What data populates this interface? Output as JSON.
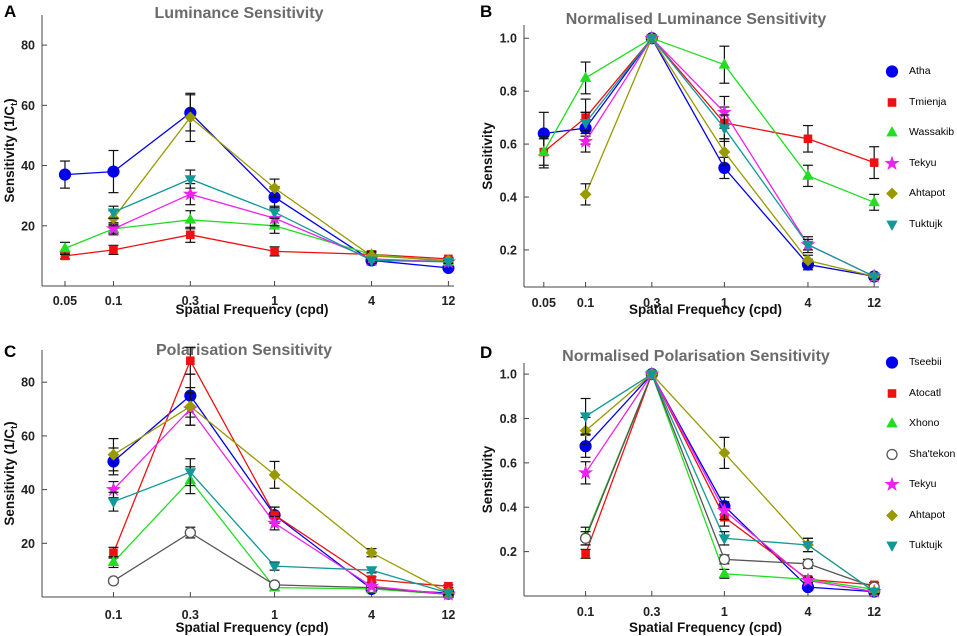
{
  "figure": {
    "panels": [
      {
        "letter": "A",
        "title": "Luminance Sensitivity"
      },
      {
        "letter": "B",
        "title": "Normalised Luminance Sensitivity"
      },
      {
        "letter": "C",
        "title": "Polarisation Sensitivity"
      },
      {
        "letter": "D",
        "title": "Normalised Polarisation Sensitivity"
      }
    ]
  },
  "chart_data": [
    {
      "type": "line",
      "title": "Luminance Sensitivity",
      "xlabel": "Spatial Frequency (cpd)",
      "ylabel": "Sensitivity (1/C",
      "ylabel_sub": "t",
      "ylabel_end": ")",
      "xscale": "log",
      "xlim": [
        0.036,
        13
      ],
      "ylim": [
        0,
        90
      ],
      "xticks": [
        0.05,
        0.1,
        0.3,
        1,
        4,
        12
      ],
      "xticklabels": [
        "0.05",
        "0.1",
        "0.3",
        "1",
        "4",
        "12"
      ],
      "yticks": [
        20,
        40,
        60,
        80
      ],
      "yticklabels": [
        "20",
        "40",
        "60",
        "80"
      ],
      "legend": "none",
      "series": [
        {
          "name": "Atha",
          "color": "#0000ee",
          "marker": "circle",
          "x": [
            0.05,
            0.1,
            0.3,
            1,
            4,
            12
          ],
          "y": [
            37,
            38,
            57.5,
            29.5,
            8.5,
            6
          ],
          "err": [
            4.5,
            7,
            6,
            3.5,
            1.5,
            0.5
          ]
        },
        {
          "name": "Tmienja",
          "color": "#ee1111",
          "marker": "square",
          "x": [
            0.05,
            0.1,
            0.3,
            1,
            4,
            12
          ],
          "y": [
            10,
            12,
            17,
            11.5,
            10.5,
            9
          ],
          "err": [
            1,
            1.5,
            2.5,
            1.5,
            1,
            0.5
          ]
        },
        {
          "name": "Wassakib",
          "color": "#22dd22",
          "marker": "triangle",
          "x": [
            0.05,
            0.1,
            0.3,
            1,
            4,
            12
          ],
          "y": [
            12.5,
            19,
            22,
            20,
            10.5,
            8
          ],
          "err": [
            2,
            1.5,
            3,
            2.5,
            1,
            0.5
          ]
        },
        {
          "name": "Tekyu",
          "color": "#ee22ee",
          "marker": "star",
          "x": [
            0.1,
            0.3,
            1,
            4,
            12
          ],
          "y": [
            19,
            30.5,
            22.5,
            9,
            8
          ],
          "err": [
            2,
            3.5,
            2.5,
            1,
            0.5
          ]
        },
        {
          "name": "Ahtapot",
          "color": "#999900",
          "marker": "diamond",
          "x": [
            0.1,
            0.3,
            1,
            4,
            12
          ],
          "y": [
            22.5,
            56,
            32.5,
            10,
            8.5
          ],
          "err": [
            2.5,
            8,
            3,
            1,
            0.5
          ]
        },
        {
          "name": "Tuktujk",
          "color": "#119999",
          "marker": "tridown",
          "x": [
            0.1,
            0.3,
            1,
            4,
            12
          ],
          "y": [
            24.5,
            35.5,
            24.5,
            8.5,
            8
          ],
          "err": [
            2,
            3,
            2,
            1,
            0.5
          ]
        }
      ]
    },
    {
      "type": "line",
      "title": "Normalised Luminance Sensitivity",
      "xlabel": "Spatial Frequency (cpd)",
      "ylabel": "Sensitivity",
      "xscale": "log",
      "xlim": [
        0.036,
        13
      ],
      "ylim": [
        0.06,
        1.05
      ],
      "xticks": [
        0.05,
        0.1,
        0.3,
        1,
        4,
        12
      ],
      "xticklabels": [
        "0.05",
        "0.1",
        "0.3",
        "1",
        "4",
        "12"
      ],
      "yticks": [
        0.2,
        0.4,
        0.6,
        0.8,
        1.0
      ],
      "yticklabels": [
        "0.2",
        "0.4",
        "0.6",
        "0.8",
        "1.0"
      ],
      "legend": "right",
      "series": [
        {
          "name": "Atha",
          "color": "#0000ee",
          "marker": "circle",
          "x": [
            0.05,
            0.1,
            0.3,
            1,
            4,
            12
          ],
          "y": [
            0.64,
            0.66,
            1.0,
            0.51,
            0.145,
            0.1
          ],
          "err": [
            0.08,
            0.06,
            0,
            0.04,
            0.02,
            0.01
          ]
        },
        {
          "name": "Tmienja",
          "color": "#ee1111",
          "marker": "square",
          "x": [
            0.05,
            0.1,
            0.3,
            1,
            4,
            12
          ],
          "y": [
            0.57,
            0.7,
            1.0,
            0.68,
            0.62,
            0.53
          ],
          "err": [
            0.05,
            0.07,
            0,
            0.06,
            0.05,
            0.06
          ]
        },
        {
          "name": "Wassakib",
          "color": "#22dd22",
          "marker": "triangle",
          "x": [
            0.05,
            0.1,
            0.3,
            1,
            4,
            12
          ],
          "y": [
            0.57,
            0.85,
            1.0,
            0.9,
            0.48,
            0.38
          ],
          "err": [
            0.06,
            0.06,
            0,
            0.07,
            0.04,
            0.03
          ]
        },
        {
          "name": "Tekyu",
          "color": "#ee22ee",
          "marker": "star",
          "x": [
            0.1,
            0.3,
            1,
            4,
            12
          ],
          "y": [
            0.61,
            1.0,
            0.72,
            0.22,
            0.1
          ],
          "err": [
            0.04,
            0,
            0.06,
            0.03,
            0.01
          ]
        },
        {
          "name": "Ahtapot",
          "color": "#999900",
          "marker": "diamond",
          "x": [
            0.1,
            0.3,
            1,
            4,
            12
          ],
          "y": [
            0.41,
            1.0,
            0.57,
            0.16,
            0.1
          ],
          "err": [
            0.04,
            0,
            0.05,
            0.02,
            0.01
          ]
        },
        {
          "name": "Tuktujk",
          "color": "#119999",
          "marker": "tridown",
          "x": [
            0.1,
            0.3,
            1,
            4,
            12
          ],
          "y": [
            0.68,
            1.0,
            0.66,
            0.22,
            0.1
          ],
          "err": [
            0.04,
            0,
            0.05,
            0.02,
            0.01
          ]
        }
      ]
    },
    {
      "type": "line",
      "title": "Polarisation Sensitivity",
      "xlabel": "Spatial Frequency (cpd)",
      "ylabel": "Sensitivity (1/C",
      "ylabel_sub": "t",
      "ylabel_end": ")",
      "xscale": "log",
      "xlim": [
        0.036,
        13
      ],
      "ylim": [
        0,
        92
      ],
      "xticks": [
        0.1,
        0.3,
        1,
        4,
        12
      ],
      "xticklabels": [
        "0.1",
        "0.3",
        "1",
        "4",
        "12"
      ],
      "yticks": [
        20,
        40,
        60,
        80
      ],
      "yticklabels": [
        "20",
        "40",
        "60",
        "80"
      ],
      "legend": "none",
      "series": [
        {
          "name": "Tseebii",
          "color": "#0000ee",
          "marker": "circle",
          "x": [
            0.1,
            0.3,
            1,
            4,
            12
          ],
          "y": [
            50.5,
            75,
            30.5,
            3,
            1.5
          ],
          "err": [
            5,
            8,
            3,
            1,
            0.5
          ]
        },
        {
          "name": "Atocatl",
          "color": "#ee1111",
          "marker": "square",
          "x": [
            0.1,
            0.3,
            1,
            4,
            12
          ],
          "y": [
            16.5,
            88,
            30.5,
            6.5,
            4
          ],
          "err": [
            2,
            5,
            3,
            1,
            0.5
          ]
        },
        {
          "name": "Xhono",
          "color": "#22dd22",
          "marker": "triangle",
          "x": [
            0.1,
            0.3,
            1,
            4,
            12
          ],
          "y": [
            13,
            43.5,
            3.5,
            3,
            1
          ],
          "err": [
            2,
            5,
            1,
            0.5,
            0.5
          ]
        },
        {
          "name": "Sha'tekon",
          "color": "#555555",
          "marker": "opencircle",
          "x": [
            0.1,
            0.3,
            1,
            4,
            12
          ],
          "y": [
            6,
            24,
            4.5,
            3.5,
            1
          ],
          "err": [
            1,
            2,
            1,
            0.5,
            0.5
          ]
        },
        {
          "name": "Tekyu",
          "color": "#ee22ee",
          "marker": "star",
          "x": [
            0.1,
            0.3,
            1,
            4,
            12
          ],
          "y": [
            40,
            70,
            27.5,
            4,
            1
          ],
          "err": [
            3,
            6,
            2.5,
            0.5,
            0.5
          ]
        },
        {
          "name": "Ahtapot",
          "color": "#999900",
          "marker": "diamond",
          "x": [
            0.1,
            0.3,
            1,
            4,
            12
          ],
          "y": [
            53,
            71,
            45.5,
            16.5,
            1.5
          ],
          "err": [
            6,
            7,
            5,
            1.5,
            0.5
          ]
        },
        {
          "name": "Tuktujk",
          "color": "#119999",
          "marker": "tridown",
          "x": [
            0.1,
            0.3,
            1,
            4,
            12
          ],
          "y": [
            35.5,
            46.5,
            11.5,
            10,
            1.5
          ],
          "err": [
            3.5,
            5,
            1.5,
            1,
            0.5
          ]
        }
      ]
    },
    {
      "type": "line",
      "title": "Normalised Polarisation Sensitivity",
      "xlabel": "Spatial Frequency (cpd)",
      "ylabel": "Sensitivity",
      "xscale": "log",
      "xlim": [
        0.036,
        13
      ],
      "ylim": [
        0,
        1.05
      ],
      "xticks": [
        0.1,
        0.3,
        1,
        4,
        12
      ],
      "xticklabels": [
        "0.1",
        "0.3",
        "1",
        "4",
        "12"
      ],
      "yticks": [
        0.2,
        0.4,
        0.6,
        0.8,
        1.0
      ],
      "yticklabels": [
        "0.2",
        "0.4",
        "0.6",
        "0.8",
        "1.0"
      ],
      "legend": "right",
      "series": [
        {
          "name": "Tseebii",
          "color": "#0000ee",
          "marker": "circle",
          "x": [
            0.1,
            0.3,
            1,
            4,
            12
          ],
          "y": [
            0.675,
            1.0,
            0.405,
            0.04,
            0.02
          ],
          "err": [
            0.05,
            0,
            0.04,
            0.01,
            0.01
          ]
        },
        {
          "name": "Atocatl",
          "color": "#ee1111",
          "marker": "square",
          "x": [
            0.1,
            0.3,
            1,
            4,
            12
          ],
          "y": [
            0.19,
            1.0,
            0.355,
            0.075,
            0.05
          ],
          "err": [
            0.02,
            0,
            0.04,
            0.01,
            0.01
          ]
        },
        {
          "name": "Xhono",
          "color": "#22dd22",
          "marker": "triangle",
          "x": [
            0.1,
            0.3,
            1,
            4,
            12
          ],
          "y": [
            0.27,
            1.0,
            0.1,
            0.075,
            0.03
          ],
          "err": [
            0.04,
            0,
            0.02,
            0.01,
            0.01
          ]
        },
        {
          "name": "Sha'tekon",
          "color": "#555555",
          "marker": "opencircle",
          "x": [
            0.1,
            0.3,
            1,
            4,
            12
          ],
          "y": [
            0.26,
            1.0,
            0.165,
            0.145,
            0.04
          ],
          "err": [
            0.03,
            0,
            0.02,
            0.02,
            0.01
          ]
        },
        {
          "name": "Tekyu",
          "color": "#ee22ee",
          "marker": "star",
          "x": [
            0.1,
            0.3,
            1,
            4,
            12
          ],
          "y": [
            0.555,
            1.0,
            0.385,
            0.07,
            0.02
          ],
          "err": [
            0.05,
            0,
            0.04,
            0.01,
            0.01
          ]
        },
        {
          "name": "Ahtapot",
          "color": "#999900",
          "marker": "diamond",
          "x": [
            0.1,
            0.3,
            1,
            4,
            12
          ],
          "y": [
            0.745,
            1.0,
            0.645,
            0.23,
            0.02
          ],
          "err": [
            0.06,
            0,
            0.07,
            0.03,
            0.01
          ]
        },
        {
          "name": "Tuktujk",
          "color": "#119999",
          "marker": "tridown",
          "x": [
            0.1,
            0.3,
            1,
            4,
            12
          ],
          "y": [
            0.81,
            1.0,
            0.26,
            0.23,
            0.02
          ],
          "err": [
            0.08,
            0,
            0.03,
            0.03,
            0.01
          ]
        }
      ]
    }
  ]
}
